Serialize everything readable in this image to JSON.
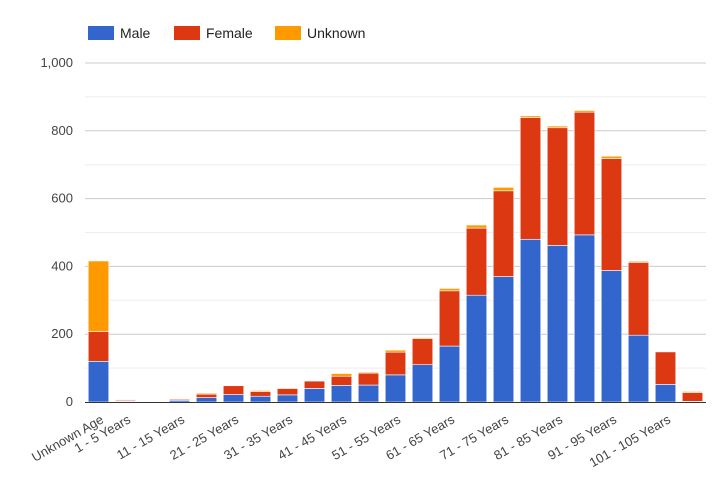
{
  "chart_data": {
    "type": "bar",
    "stacked": true,
    "title": "",
    "xlabel": "",
    "ylabel": "",
    "ylim": [
      0,
      1000
    ],
    "yticks": [
      0,
      200,
      400,
      600,
      800,
      1000
    ],
    "ytick_labels": [
      "0",
      "200",
      "400",
      "600",
      "800",
      "1,000"
    ],
    "grid": true,
    "legend_position": "top-left",
    "categories": [
      "Unknown Age",
      "1 - 5 Years",
      "6 - 10 Years",
      "11 - 15 Years",
      "16 - 20 Years",
      "21 - 25 Years",
      "26 - 30 Years",
      "31 - 35 Years",
      "36 - 40 Years",
      "41 - 45 Years",
      "46 - 50 Years",
      "51 - 55 Years",
      "56 - 60 Years",
      "61 - 65 Years",
      "66 - 70 Years",
      "71 - 75 Years",
      "76 - 80 Years",
      "81 - 85 Years",
      "86 - 90 Years",
      "91 - 95 Years",
      "96 - 100 Years",
      "101 - 105 Years",
      "106 - 110 Years"
    ],
    "visible_tick_labels": [
      "Unknown Age",
      "1 - 5 Years",
      "11 - 15 Years",
      "21 - 25 Years",
      "31 - 35 Years",
      "41 - 45 Years",
      "51 - 55 Years",
      "61 - 65 Years",
      "71 - 75 Years",
      "81 - 85 Years",
      "91 - 95 Years",
      "101 - 105 Years"
    ],
    "series": [
      {
        "name": "Male",
        "color": "#3366cc",
        "values": [
          120,
          2,
          1,
          5,
          13,
          22,
          17,
          21,
          40,
          49,
          50,
          80,
          110,
          165,
          315,
          370,
          480,
          462,
          493,
          388,
          197,
          52,
          2
        ]
      },
      {
        "name": "Female",
        "color": "#dc3912",
        "values": [
          88,
          3,
          1,
          3,
          10,
          26,
          14,
          19,
          22,
          27,
          35,
          67,
          77,
          163,
          198,
          253,
          359,
          347,
          362,
          330,
          215,
          96,
          26
        ]
      },
      {
        "name": "Unknown",
        "color": "#ff9900",
        "values": [
          208,
          2,
          1,
          1,
          3,
          1,
          3,
          2,
          1,
          8,
          3,
          6,
          3,
          7,
          9,
          10,
          5,
          5,
          5,
          7,
          3,
          1,
          3
        ]
      }
    ]
  }
}
